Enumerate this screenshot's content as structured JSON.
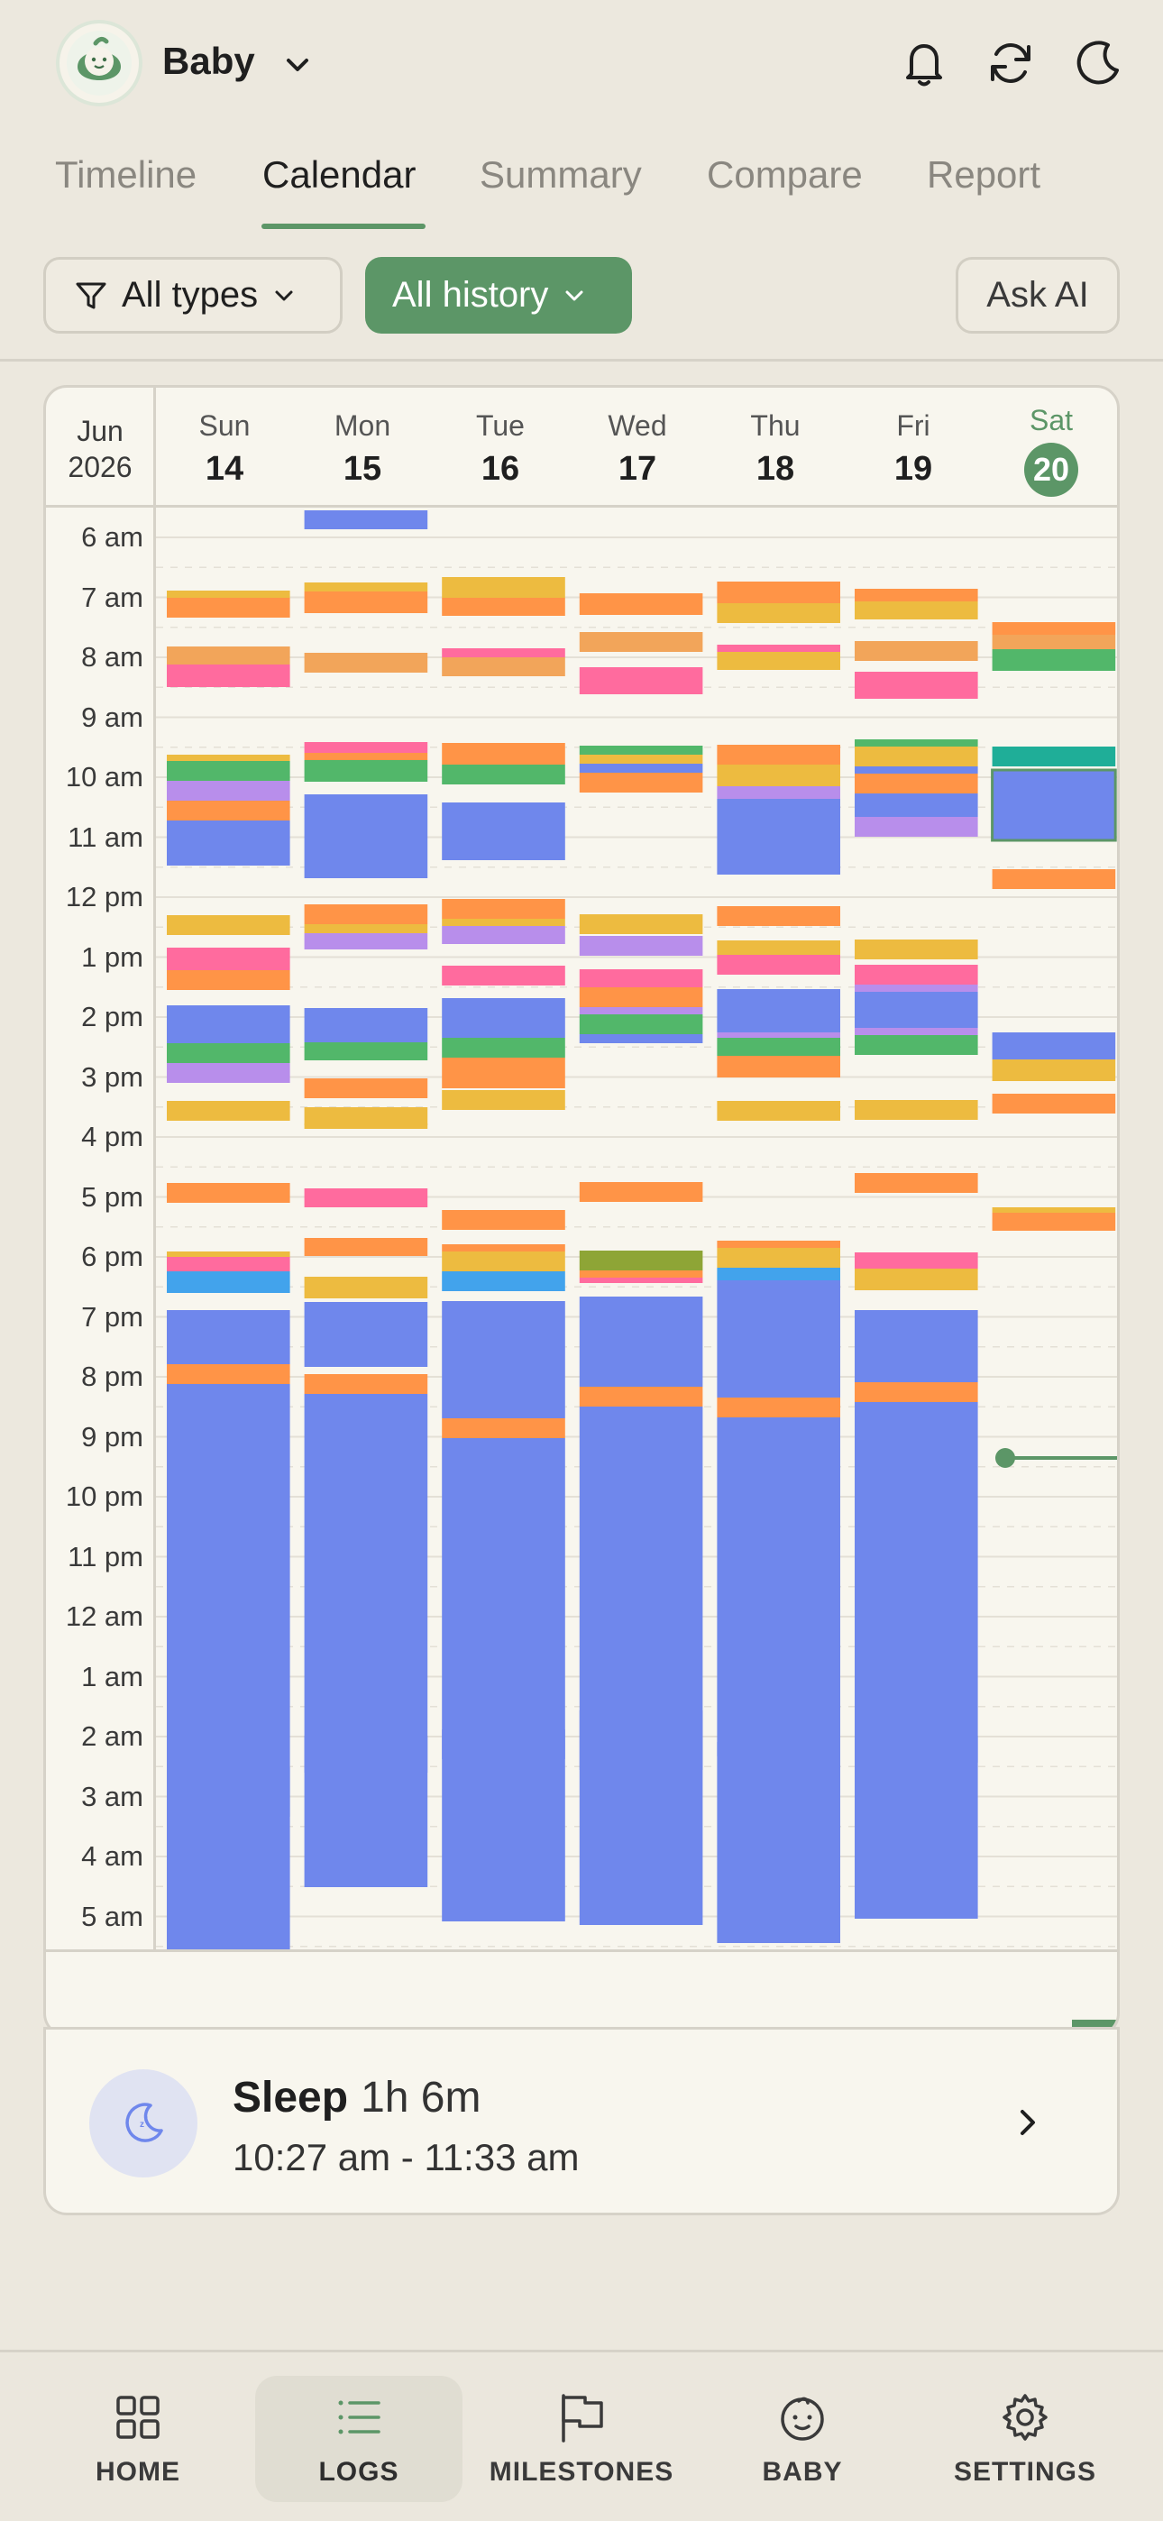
{
  "header": {
    "baby_name": "Baby",
    "icons": [
      "baby-avatar-icon",
      "chevron-down-icon",
      "bell-icon",
      "refresh-icon",
      "moon-icon"
    ]
  },
  "tabs": [
    {
      "label": "Timeline",
      "active": false
    },
    {
      "label": "Calendar",
      "active": true
    },
    {
      "label": "Summary",
      "active": false
    },
    {
      "label": "Compare",
      "active": false
    },
    {
      "label": "Report",
      "active": false
    }
  ],
  "filters": {
    "types_label": "All types",
    "history_label": "All history",
    "ask_ai_label": "Ask AI"
  },
  "calendar": {
    "month": "Jun",
    "year": "2026",
    "days": [
      {
        "name": "Sun",
        "num": "14",
        "today": false
      },
      {
        "name": "Mon",
        "num": "15",
        "today": false
      },
      {
        "name": "Tue",
        "num": "16",
        "today": false
      },
      {
        "name": "Wed",
        "num": "17",
        "today": false
      },
      {
        "name": "Thu",
        "num": "18",
        "today": false
      },
      {
        "name": "Fri",
        "num": "19",
        "today": false
      },
      {
        "name": "Sat",
        "num": "20",
        "today": true
      }
    ],
    "hours": [
      "6 am",
      "7 am",
      "8 am",
      "9 am",
      "10 am",
      "11 am",
      "12 pm",
      "1 pm",
      "2 pm",
      "3 pm",
      "4 pm",
      "5 pm",
      "6 pm",
      "7 pm",
      "8 pm",
      "9 pm",
      "10 pm",
      "11 pm",
      "12 am",
      "1 am",
      "2 am",
      "3 am",
      "4 am",
      "5 am"
    ],
    "colors": {
      "sleep": "#6F87EC",
      "orange": "#FF9447",
      "yellow": "#EDBB40",
      "pink": "#FF6B9E",
      "green": "#52B76A",
      "purple": "#B88EEB",
      "peach": "#F2A55A",
      "teal": "#1FAE98",
      "lightblue": "#42A3EC",
      "olive": "#8EA536",
      "accent": "#5C9667"
    }
  },
  "selected_event": {
    "title": "Sleep",
    "duration": "1h 6m",
    "time_range": "10:27 am - 11:33 am",
    "icon": "moon-sleep-icon"
  },
  "nav": [
    {
      "label": "HOME",
      "icon": "grid-icon",
      "active": false
    },
    {
      "label": "LOGS",
      "icon": "list-icon",
      "active": true
    },
    {
      "label": "MILESTONES",
      "icon": "flag-icon",
      "active": false
    },
    {
      "label": "BABY",
      "icon": "baby-face-icon",
      "active": false
    },
    {
      "label": "SETTINGS",
      "icon": "gear-icon",
      "active": false
    }
  ]
}
